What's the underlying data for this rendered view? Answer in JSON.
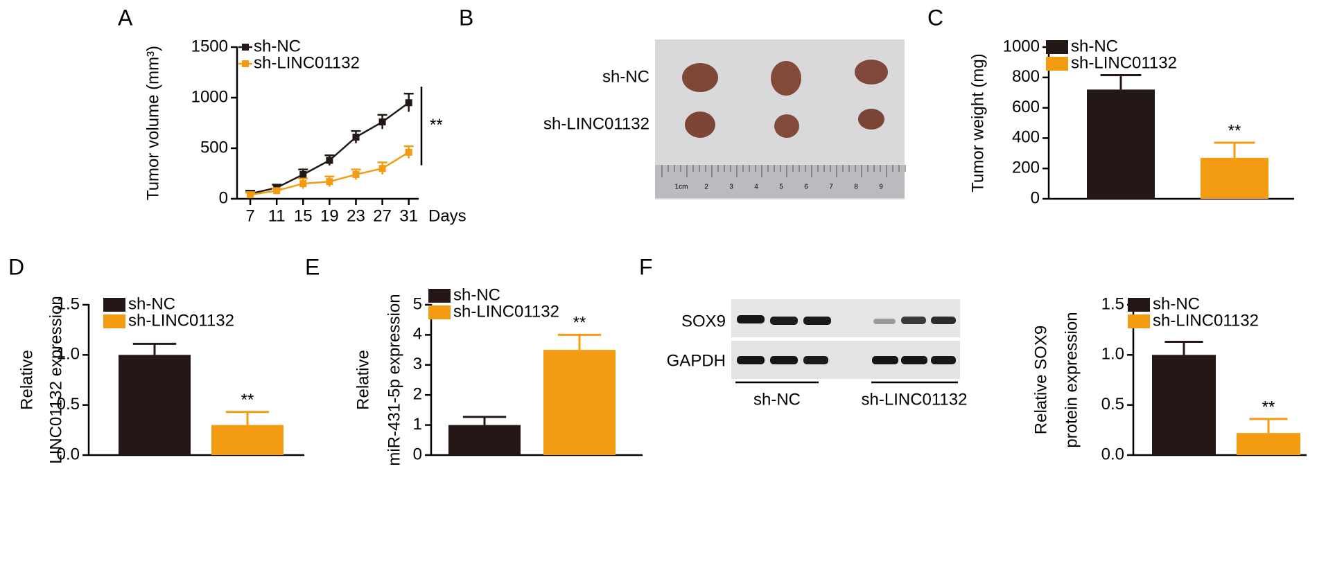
{
  "figure": {
    "panel_labels": [
      "A",
      "B",
      "C",
      "D",
      "E",
      "F"
    ],
    "photo": {
      "row_labels": [
        "sh-NC",
        "sh-LINC01132"
      ],
      "ruler_labels": [
        "1cm",
        "2",
        "3",
        "4",
        "5",
        "6",
        "7",
        "8",
        "9"
      ]
    },
    "blot": {
      "row_labels": [
        "SOX9",
        "GAPDH"
      ],
      "group_labels": [
        "sh-NC",
        "sh-LINC01132"
      ]
    }
  },
  "chart_data": [
    {
      "type": "line",
      "ylabel": [
        "Tumor volume (mm³)"
      ],
      "xlabel": "Days",
      "x": [
        7,
        11,
        15,
        19,
        23,
        27,
        31
      ],
      "xlim": [
        5,
        32.5
      ],
      "xticks": [
        7,
        11,
        15,
        19,
        23,
        27,
        31
      ],
      "ylim": [
        0,
        1500
      ],
      "yticks": [
        0,
        500,
        1000,
        1500
      ],
      "significance": "**",
      "series": [
        {
          "name": "sh-NC",
          "color": "#231815",
          "values": [
            50,
            110,
            240,
            380,
            610,
            760,
            950
          ],
          "errors": [
            30,
            30,
            50,
            50,
            60,
            70,
            90
          ]
        },
        {
          "name": "sh-LINC01132",
          "color": "#f39c12",
          "values": [
            40,
            80,
            150,
            170,
            240,
            300,
            460
          ],
          "errors": [
            20,
            20,
            50,
            50,
            50,
            60,
            60
          ]
        }
      ]
    },
    {
      "type": "bar",
      "ylabel": [
        "Tumor weight (mg)"
      ],
      "legend": [
        "sh-NC",
        "sh-LINC01132"
      ],
      "colors": [
        "#231815",
        "#f39c12"
      ],
      "values": [
        720,
        270
      ],
      "errors": [
        95,
        100
      ],
      "annotations": [
        null,
        "**"
      ],
      "ylim": [
        0,
        1000
      ],
      "yticks": [
        0,
        200,
        400,
        600,
        800,
        1000
      ]
    },
    {
      "type": "bar",
      "ylabel": [
        "Relative",
        "LINC01132 expression"
      ],
      "legend": [
        "sh-NC",
        "sh-LINC01132"
      ],
      "colors": [
        "#231815",
        "#f39c12"
      ],
      "values": [
        1.0,
        0.3
      ],
      "errors": [
        0.11,
        0.13
      ],
      "annotations": [
        null,
        "**"
      ],
      "ylim": [
        0,
        1.5
      ],
      "yticks": [
        {
          "value": 0,
          "label": "0.0"
        },
        {
          "value": 0.5,
          "label": "0.5"
        },
        {
          "value": 1,
          "label": "1.0"
        },
        {
          "value": 1.5,
          "label": "1.5"
        }
      ]
    },
    {
      "type": "bar",
      "ylabel": [
        "Relative",
        "miR-431-5p expression"
      ],
      "legend": [
        "sh-NC",
        "sh-LINC01132"
      ],
      "colors": [
        "#231815",
        "#f39c12"
      ],
      "values": [
        1.0,
        3.5
      ],
      "errors": [
        0.27,
        0.5
      ],
      "annotations": [
        null,
        "**"
      ],
      "ylim": [
        0,
        5
      ],
      "yticks": [
        0,
        1,
        2,
        3,
        4,
        5
      ]
    },
    {
      "type": "bar",
      "ylabel": [
        "Relative SOX9",
        "protein expression"
      ],
      "legend": [
        "sh-NC",
        "sh-LINC01132"
      ],
      "colors": [
        "#231815",
        "#f39c12"
      ],
      "values": [
        1.0,
        0.22
      ],
      "errors": [
        0.13,
        0.14
      ],
      "annotations": [
        null,
        "**"
      ],
      "ylim": [
        0,
        1.5
      ],
      "yticks": [
        {
          "value": 0,
          "label": "0.0"
        },
        {
          "value": 0.5,
          "label": "0.5"
        },
        {
          "value": 1,
          "label": "1.0"
        },
        {
          "value": 1.5,
          "label": "1.5"
        }
      ]
    }
  ]
}
